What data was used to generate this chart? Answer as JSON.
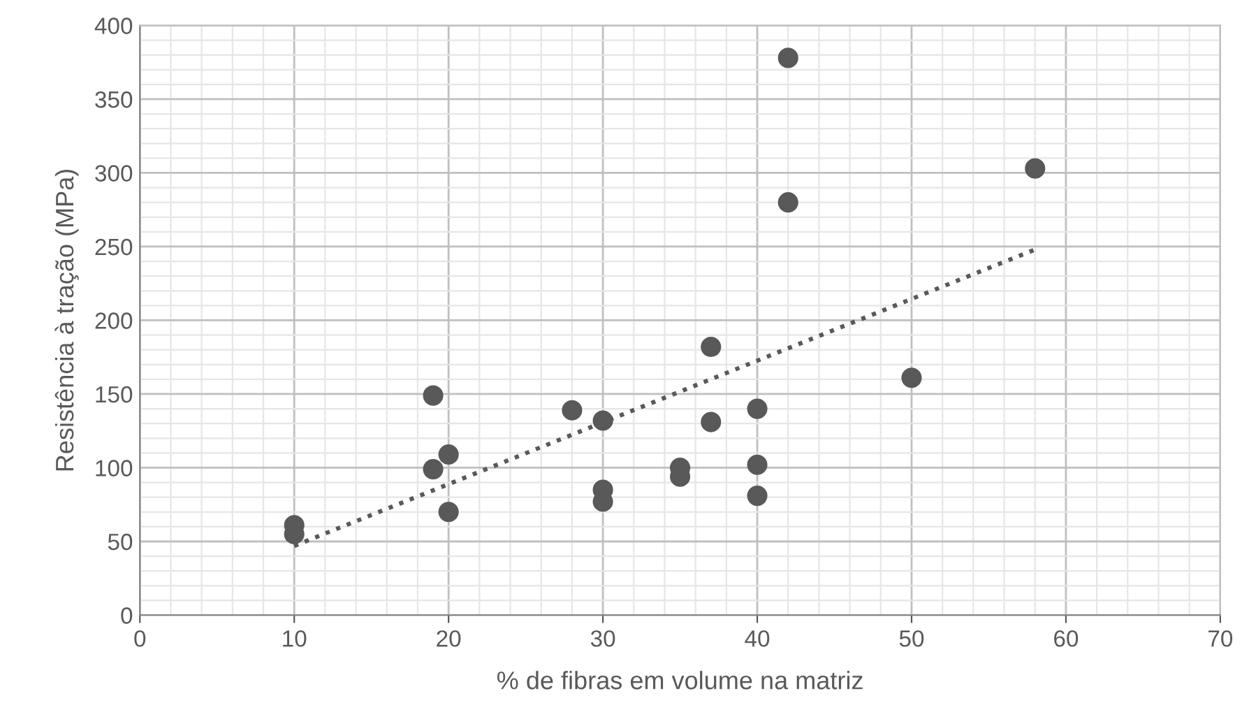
{
  "chart_data": {
    "type": "scatter",
    "xlabel": "% de fibras em volume na matriz",
    "ylabel": "Resistência à tração (MPa)",
    "xlim": [
      0,
      70
    ],
    "xticks": [
      0,
      10,
      20,
      30,
      40,
      50,
      60,
      70
    ],
    "ylim": [
      0,
      400
    ],
    "yticks": [
      0,
      50,
      100,
      150,
      200,
      250,
      300,
      350,
      400
    ],
    "grid": true,
    "marker": "circle",
    "series": [
      {
        "color": "#595959",
        "x": [
          10,
          10,
          19,
          19,
          20,
          20,
          28,
          30,
          30,
          30,
          35,
          35,
          37,
          37,
          40,
          40,
          40,
          42,
          42,
          50,
          58
        ],
        "values": [
          61,
          55,
          149,
          99,
          109,
          70,
          139,
          132,
          85,
          77,
          100,
          94,
          182,
          131,
          140,
          102,
          81,
          378,
          280,
          161,
          303
        ]
      },
      {
        "type": "line",
        "line_style": "dotted",
        "marker": "none",
        "color": "#595959",
        "x": [
          10,
          58
        ],
        "values": [
          47,
          248
        ]
      }
    ]
  }
}
